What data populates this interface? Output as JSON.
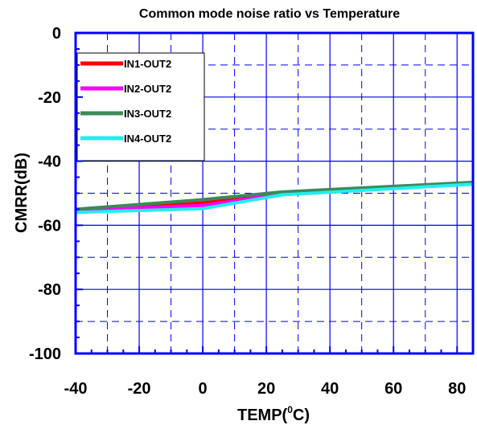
{
  "chart_data": {
    "type": "line",
    "title": "Common mode noise ratio vs Temperature",
    "xlabel_main": "TEMP(",
    "xlabel_sup": "0",
    "xlabel_tail": "C)",
    "ylabel": "CMRR(dB)",
    "xlim": [
      -40,
      85
    ],
    "ylim": [
      -100,
      0
    ],
    "x_ticks": [
      -40,
      -20,
      0,
      20,
      40,
      60,
      80
    ],
    "y_ticks": [
      0,
      -20,
      -40,
      -60,
      -80,
      -100
    ],
    "x_tick_labels": [
      "-40",
      "-20",
      "0",
      "20",
      "40",
      "60",
      "80"
    ],
    "y_tick_labels": [
      "0",
      "-20",
      "-40",
      "-60",
      "-80",
      "-100"
    ],
    "grid": true,
    "legend_position": "top-left",
    "series": [
      {
        "name": "IN1-OUT2",
        "color": "#ff0000",
        "x": [
          -40,
          0,
          25,
          85
        ],
        "y": [
          -55.2,
          -53.0,
          -50.0,
          -46.8
        ]
      },
      {
        "name": "IN2-OUT2",
        "color": "#ff00ff",
        "x": [
          -40,
          0,
          25,
          85
        ],
        "y": [
          -55.3,
          -53.8,
          -50.2,
          -46.9
        ]
      },
      {
        "name": "IN3-OUT2",
        "color": "#3a8a5a",
        "x": [
          -40,
          0,
          25,
          85
        ],
        "y": [
          -55.0,
          -52.0,
          -49.6,
          -46.6
        ]
      },
      {
        "name": "IN4-OUT2",
        "color": "#22eeee",
        "x": [
          -40,
          0,
          25,
          85
        ],
        "y": [
          -56.0,
          -54.8,
          -50.5,
          -47.2
        ]
      }
    ],
    "axis_color": "#0000ff",
    "grid_color": "#0000ff"
  }
}
